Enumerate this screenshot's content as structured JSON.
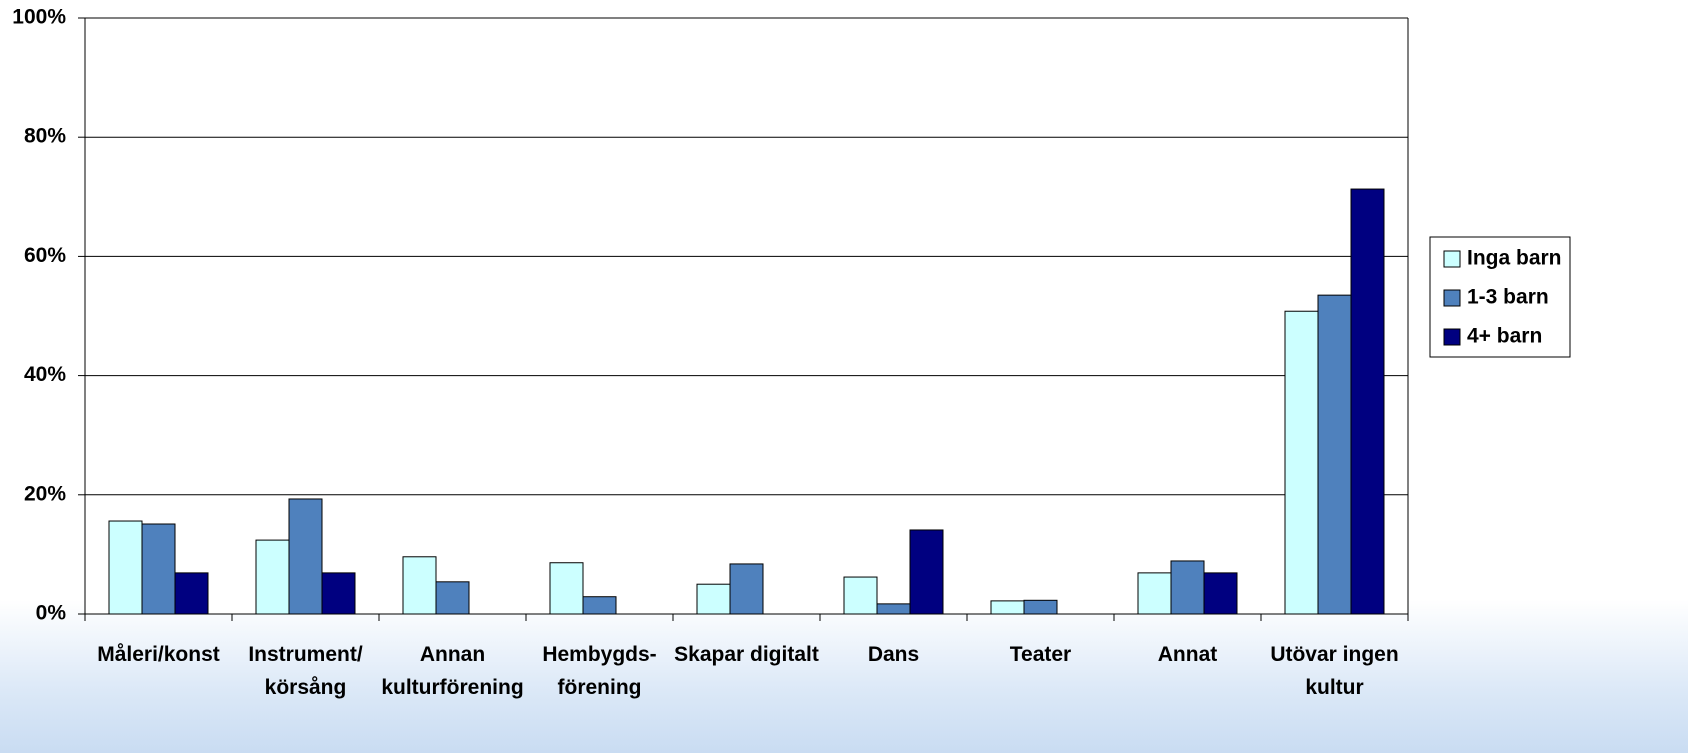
{
  "chart_data": {
    "type": "bar",
    "categories": [
      "Måleri/konst",
      "Instrument/\nkörsång",
      "Annan\nkulturförening",
      "Hembygds-\nförening",
      "Skapar digitalt",
      "Dans",
      "Teater",
      "Annat",
      "Utövar ingen\nkultur"
    ],
    "series": [
      {
        "name": "Inga barn",
        "color": "#ccffff",
        "values": [
          15.6,
          12.4,
          9.6,
          8.6,
          5.0,
          6.2,
          2.2,
          6.9,
          50.8
        ]
      },
      {
        "name": "1-3 barn",
        "color": "#4f81bd",
        "values": [
          15.1,
          19.3,
          5.4,
          2.9,
          8.4,
          1.7,
          2.3,
          8.9,
          53.5
        ]
      },
      {
        "name": "4+ barn",
        "color": "#000080",
        "values": [
          6.9,
          6.9,
          0,
          0,
          0,
          14.1,
          0,
          6.9,
          71.3
        ]
      }
    ],
    "ylim": [
      0,
      100
    ],
    "yticks": [
      {
        "value": 0,
        "label": "0%"
      },
      {
        "value": 20,
        "label": "20%"
      },
      {
        "value": 40,
        "label": "40%"
      },
      {
        "value": 60,
        "label": "60%"
      },
      {
        "value": 80,
        "label": "80%"
      },
      {
        "value": 100,
        "label": "100%"
      }
    ],
    "grid": true,
    "legend": "right"
  }
}
